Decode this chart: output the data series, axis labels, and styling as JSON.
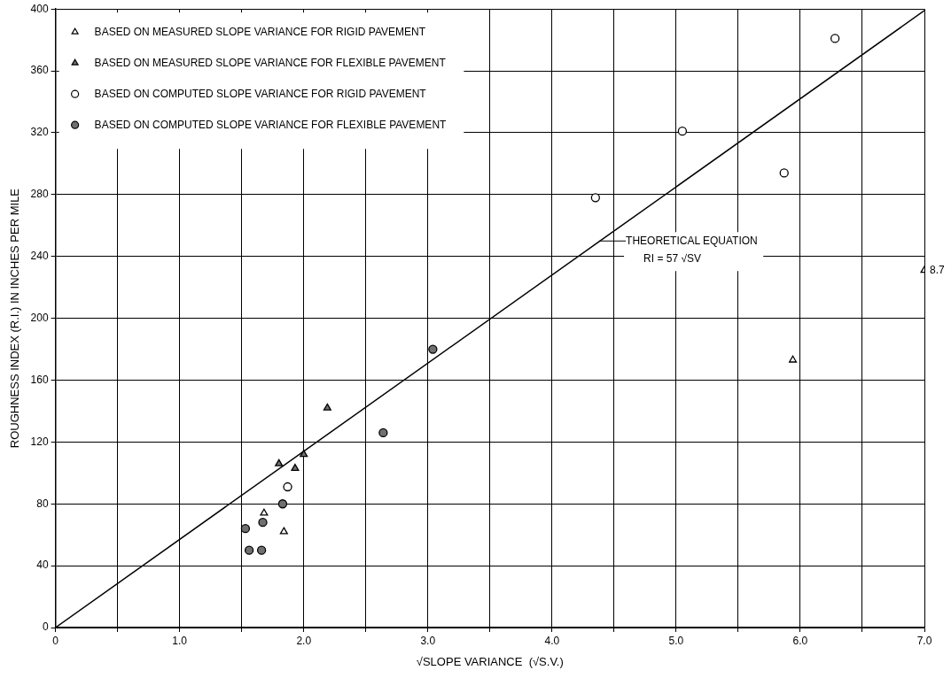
{
  "chart_data": {
    "type": "scatter",
    "xlabel": "√SLOPE VARIANCE  (√S.V.)",
    "ylabel": "ROUGHNESS INDEX (R.I.) IN INCHES PER MILE",
    "xlim": [
      0,
      7
    ],
    "ylim": [
      0,
      400
    ],
    "xticks": [
      {
        "value": 0,
        "label": "0"
      },
      {
        "value": 0.5,
        "label": null
      },
      {
        "value": 1,
        "label": "1.0"
      },
      {
        "value": 1.5,
        "label": null
      },
      {
        "value": 2,
        "label": "2.0"
      },
      {
        "value": 2.5,
        "label": null
      },
      {
        "value": 3,
        "label": "3.0"
      },
      {
        "value": 3.5,
        "label": null
      },
      {
        "value": 4,
        "label": "4.0"
      },
      {
        "value": 4.5,
        "label": null
      },
      {
        "value": 5,
        "label": "5.0"
      },
      {
        "value": 5.5,
        "label": null
      },
      {
        "value": 6,
        "label": "6.0"
      },
      {
        "value": 6.5,
        "label": null
      },
      {
        "value": 7,
        "label": "7.0"
      }
    ],
    "yticks": [
      0,
      40,
      80,
      120,
      160,
      200,
      240,
      280,
      320,
      360,
      400
    ],
    "grid": true,
    "legend": "top left",
    "series": [
      {
        "name": "BASED ON MEASURED SLOPE VARIANCE FOR RIGID PAVEMENT",
        "type": "scatter",
        "marker": "triangle",
        "color": "#ffffff",
        "x": [
          1.68,
          1.84,
          5.94,
          7.0
        ],
        "values": [
          74,
          62,
          173,
          231
        ]
      },
      {
        "name": "BASED ON MEASURED SLOPE VARIANCE FOR FLEXIBLE PAVEMENT",
        "type": "scatter",
        "marker": "triangle",
        "color": "#707070",
        "x": [
          1.8,
          1.93,
          2.0,
          2.19
        ],
        "values": [
          106,
          103,
          112,
          142
        ]
      },
      {
        "name": "BASED ON COMPUTED SLOPE VARIANCE FOR RIGID PAVEMENT",
        "type": "scatter",
        "marker": "circle",
        "color": "#ffffff",
        "x": [
          1.87,
          4.35,
          5.05,
          5.87,
          6.28
        ],
        "values": [
          91,
          278,
          321,
          294,
          381
        ]
      },
      {
        "name": "BASED ON COMPUTED SLOPE VARIANCE FOR FLEXIBLE PAVEMENT",
        "type": "scatter",
        "marker": "circle",
        "color": "#707070",
        "x": [
          1.53,
          1.56,
          1.66,
          1.67,
          1.83,
          2.64,
          3.04
        ],
        "values": [
          64,
          50,
          50,
          68,
          80,
          126,
          180
        ]
      },
      {
        "type": "line",
        "marker": "none",
        "color": "#000000",
        "x": [
          0,
          7
        ],
        "values": [
          0,
          399
        ]
      }
    ],
    "annotations": [
      {
        "text": "THEORETICAL EQUATION\nRI = 57 √SV",
        "x": 4.38,
        "y": 250
      },
      {
        "text": "8.7",
        "x": 7.0,
        "y": 231
      }
    ]
  }
}
